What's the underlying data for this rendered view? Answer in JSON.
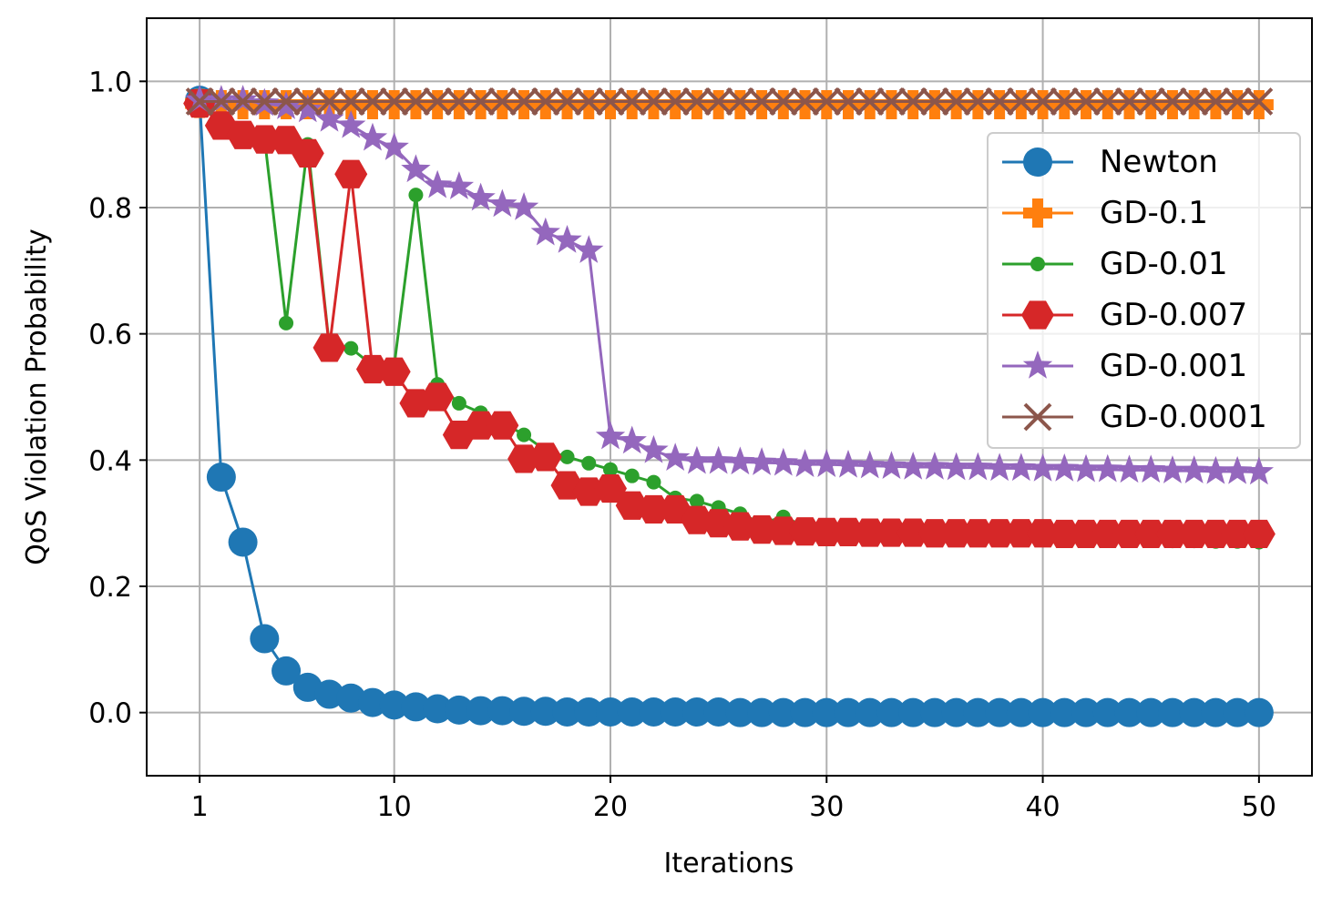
{
  "chart_data": {
    "type": "line",
    "title": "",
    "xlabel": "Iterations",
    "ylabel": "QoS Violation Probability",
    "xlim": [
      -1.45,
      52.45
    ],
    "ylim": [
      -0.1,
      1.1
    ],
    "xticks": [
      1,
      10,
      20,
      30,
      40,
      50
    ],
    "xtick_labels": [
      "1",
      "10",
      "20",
      "30",
      "40",
      "50"
    ],
    "yticks": [
      0.0,
      0.2,
      0.4,
      0.6,
      0.8,
      1.0
    ],
    "ytick_labels": [
      "0.0",
      "0.2",
      "0.4",
      "0.6",
      "0.8",
      "1.0"
    ],
    "grid": true,
    "legend_position": "right",
    "x": [
      1,
      2,
      3,
      4,
      5,
      6,
      7,
      8,
      9,
      10,
      11,
      12,
      13,
      14,
      15,
      16,
      17,
      18,
      19,
      20,
      21,
      22,
      23,
      24,
      25,
      26,
      27,
      28,
      29,
      30,
      31,
      32,
      33,
      34,
      35,
      36,
      37,
      38,
      39,
      40,
      41,
      42,
      43,
      44,
      45,
      46,
      47,
      48,
      49,
      50
    ],
    "series": [
      {
        "name": "Newton",
        "color": "#1f77b4",
        "marker": "circle",
        "values": [
          0.97,
          0.373,
          0.27,
          0.117,
          0.066,
          0.04,
          0.029,
          0.023,
          0.016,
          0.012,
          0.009,
          0.006,
          0.004,
          0.003,
          0.003,
          0.002,
          0.002,
          0.001,
          0.001,
          0.001,
          0.001,
          0.001,
          0.001,
          0.001,
          0.001,
          0.0,
          0.0,
          0.0,
          0.0,
          0.0,
          0.0,
          0.0,
          0.0,
          0.0,
          0.0,
          0.0,
          0.0,
          0.0,
          0.0,
          0.0,
          0.0,
          0.0,
          0.0,
          0.0,
          0.0,
          0.0,
          0.0,
          0.0,
          0.0,
          0.0
        ]
      },
      {
        "name": "GD-0.1",
        "color": "#ff7f0e",
        "marker": "plus",
        "values": [
          0.965,
          0.963,
          0.963,
          0.963,
          0.963,
          0.963,
          0.963,
          0.963,
          0.963,
          0.963,
          0.963,
          0.963,
          0.963,
          0.963,
          0.963,
          0.963,
          0.963,
          0.963,
          0.963,
          0.963,
          0.963,
          0.963,
          0.963,
          0.963,
          0.963,
          0.963,
          0.963,
          0.963,
          0.963,
          0.963,
          0.963,
          0.963,
          0.963,
          0.963,
          0.963,
          0.963,
          0.963,
          0.963,
          0.963,
          0.963,
          0.963,
          0.963,
          0.963,
          0.963,
          0.963,
          0.963,
          0.963,
          0.963,
          0.963,
          0.963
        ]
      },
      {
        "name": "GD-0.01",
        "color": "#2ca02c",
        "marker": "point",
        "values": [
          0.97,
          0.93,
          0.92,
          0.91,
          0.617,
          0.9,
          0.58,
          0.577,
          0.55,
          0.55,
          0.82,
          0.52,
          0.49,
          0.475,
          0.46,
          0.44,
          0.415,
          0.405,
          0.395,
          0.385,
          0.375,
          0.365,
          0.34,
          0.335,
          0.325,
          0.315,
          0.3,
          0.31,
          0.295,
          0.29,
          0.288,
          0.285,
          0.283,
          0.282,
          0.281,
          0.28,
          0.279,
          0.278,
          0.277,
          0.276,
          0.275,
          0.275,
          0.274,
          0.273,
          0.273,
          0.272,
          0.272,
          0.271,
          0.271,
          0.27
        ]
      },
      {
        "name": "GD-0.007",
        "color": "#d62728",
        "marker": "hexagon",
        "values": [
          0.965,
          0.93,
          0.915,
          0.908,
          0.907,
          0.886,
          0.578,
          0.853,
          0.544,
          0.54,
          0.49,
          0.5,
          0.44,
          0.455,
          0.455,
          0.402,
          0.405,
          0.36,
          0.35,
          0.355,
          0.328,
          0.322,
          0.322,
          0.305,
          0.3,
          0.295,
          0.29,
          0.288,
          0.287,
          0.286,
          0.286,
          0.285,
          0.285,
          0.285,
          0.284,
          0.284,
          0.284,
          0.284,
          0.284,
          0.284,
          0.283,
          0.283,
          0.283,
          0.283,
          0.283,
          0.283,
          0.283,
          0.283,
          0.283,
          0.283
        ]
      },
      {
        "name": "GD-0.001",
        "color": "#9467bd",
        "marker": "star",
        "values": [
          0.97,
          0.97,
          0.97,
          0.965,
          0.96,
          0.955,
          0.94,
          0.93,
          0.91,
          0.895,
          0.86,
          0.835,
          0.833,
          0.815,
          0.805,
          0.8,
          0.76,
          0.748,
          0.732,
          0.437,
          0.43,
          0.415,
          0.403,
          0.398,
          0.398,
          0.397,
          0.396,
          0.395,
          0.393,
          0.393,
          0.392,
          0.391,
          0.39,
          0.389,
          0.389,
          0.388,
          0.388,
          0.387,
          0.387,
          0.386,
          0.386,
          0.385,
          0.385,
          0.384,
          0.384,
          0.383,
          0.383,
          0.382,
          0.382,
          0.381
        ]
      },
      {
        "name": "GD-0.0001",
        "color": "#8c564b",
        "marker": "x",
        "values": [
          0.968,
          0.968,
          0.968,
          0.968,
          0.968,
          0.968,
          0.968,
          0.968,
          0.968,
          0.968,
          0.968,
          0.968,
          0.968,
          0.968,
          0.968,
          0.968,
          0.968,
          0.968,
          0.968,
          0.968,
          0.968,
          0.968,
          0.968,
          0.968,
          0.968,
          0.968,
          0.968,
          0.968,
          0.968,
          0.968,
          0.968,
          0.968,
          0.968,
          0.968,
          0.968,
          0.968,
          0.968,
          0.968,
          0.968,
          0.968,
          0.968,
          0.968,
          0.968,
          0.968,
          0.968,
          0.968,
          0.968,
          0.968,
          0.968,
          0.968
        ]
      }
    ]
  }
}
